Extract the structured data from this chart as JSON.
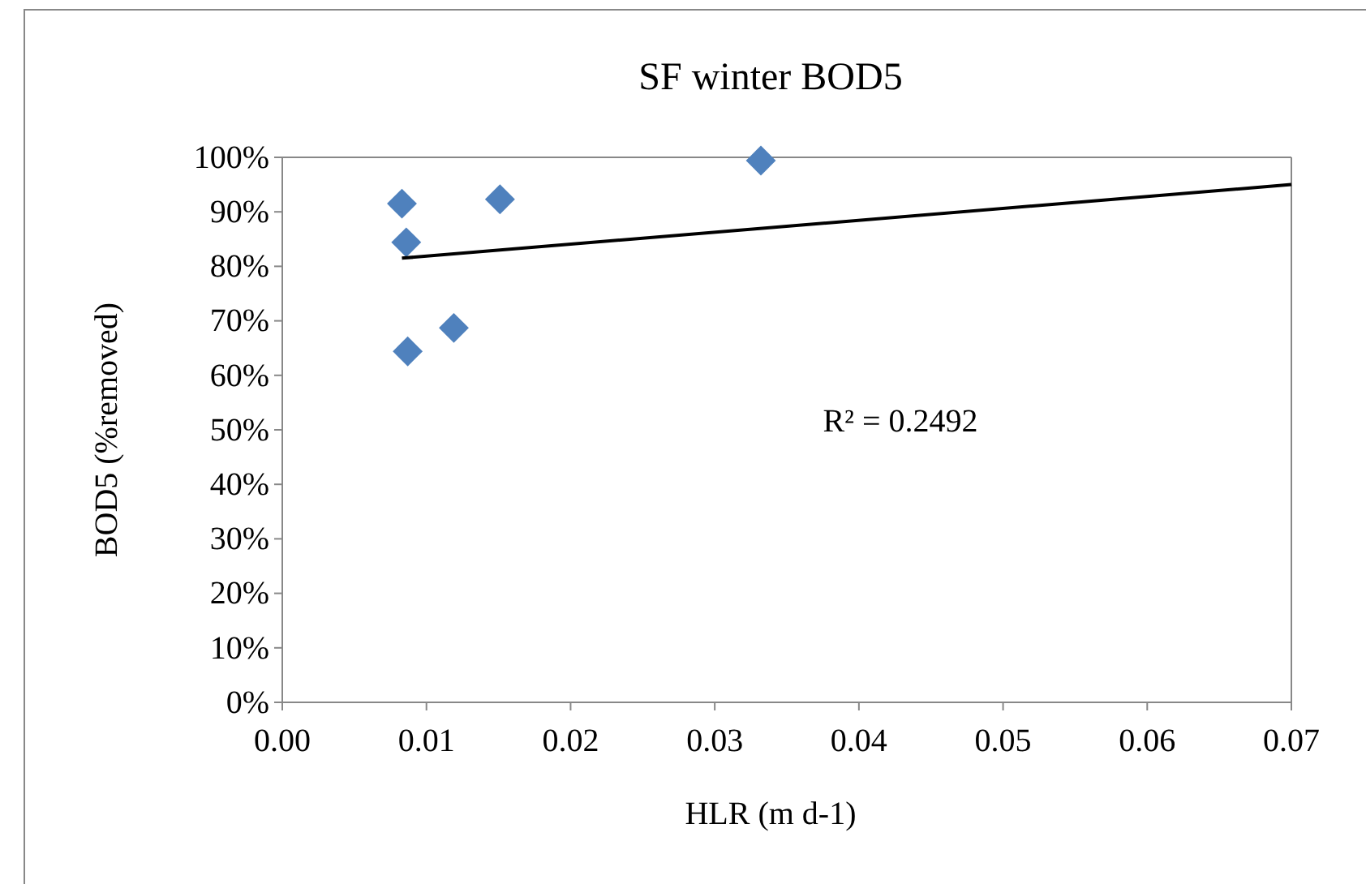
{
  "chart_data": {
    "type": "scatter",
    "title": "SF winter BOD5",
    "xlabel": "HLR (m d-1)",
    "ylabel": "BOD5 (%removed)",
    "marker": "diamond",
    "grid": false,
    "xlim": [
      0,
      0.07
    ],
    "xticks": [
      {
        "value": 0,
        "label": "0.00"
      },
      {
        "value": 0.01,
        "label": "0.01"
      },
      {
        "value": 0.02,
        "label": "0.02"
      },
      {
        "value": 0.03,
        "label": "0.03"
      },
      {
        "value": 0.04,
        "label": "0.04"
      },
      {
        "value": 0.05,
        "label": "0.05"
      },
      {
        "value": 0.06,
        "label": "0.06"
      },
      {
        "value": 0.07,
        "label": "0.07"
      }
    ],
    "ylim": [
      0,
      100
    ],
    "yticks": [
      {
        "value": 0,
        "label": "0%"
      },
      {
        "value": 10,
        "label": "10%"
      },
      {
        "value": 20,
        "label": "20%"
      },
      {
        "value": 30,
        "label": "30%"
      },
      {
        "value": 40,
        "label": "40%"
      },
      {
        "value": 50,
        "label": "50%"
      },
      {
        "value": 60,
        "label": "60%"
      },
      {
        "value": 70,
        "label": "70%"
      },
      {
        "value": 80,
        "label": "80%"
      },
      {
        "value": 90,
        "label": "90%"
      },
      {
        "value": 100,
        "label": "100%"
      }
    ],
    "series": [
      {
        "type": "scatter",
        "color": "#4f81bd",
        "x": [
          0.0083,
          0.0086,
          0.0087,
          0.0119,
          0.0151,
          0.0332
        ],
        "values": [
          91.5,
          84.4,
          64.4,
          68.7,
          92.3,
          99.4
        ]
      },
      {
        "type": "line",
        "color": "#000000",
        "x": [
          0.0083,
          0.07
        ],
        "values": [
          81.5,
          95.0
        ],
        "marker": "none",
        "line_style": "solid"
      }
    ],
    "annotations": [
      "R² = 0.2492"
    ]
  }
}
